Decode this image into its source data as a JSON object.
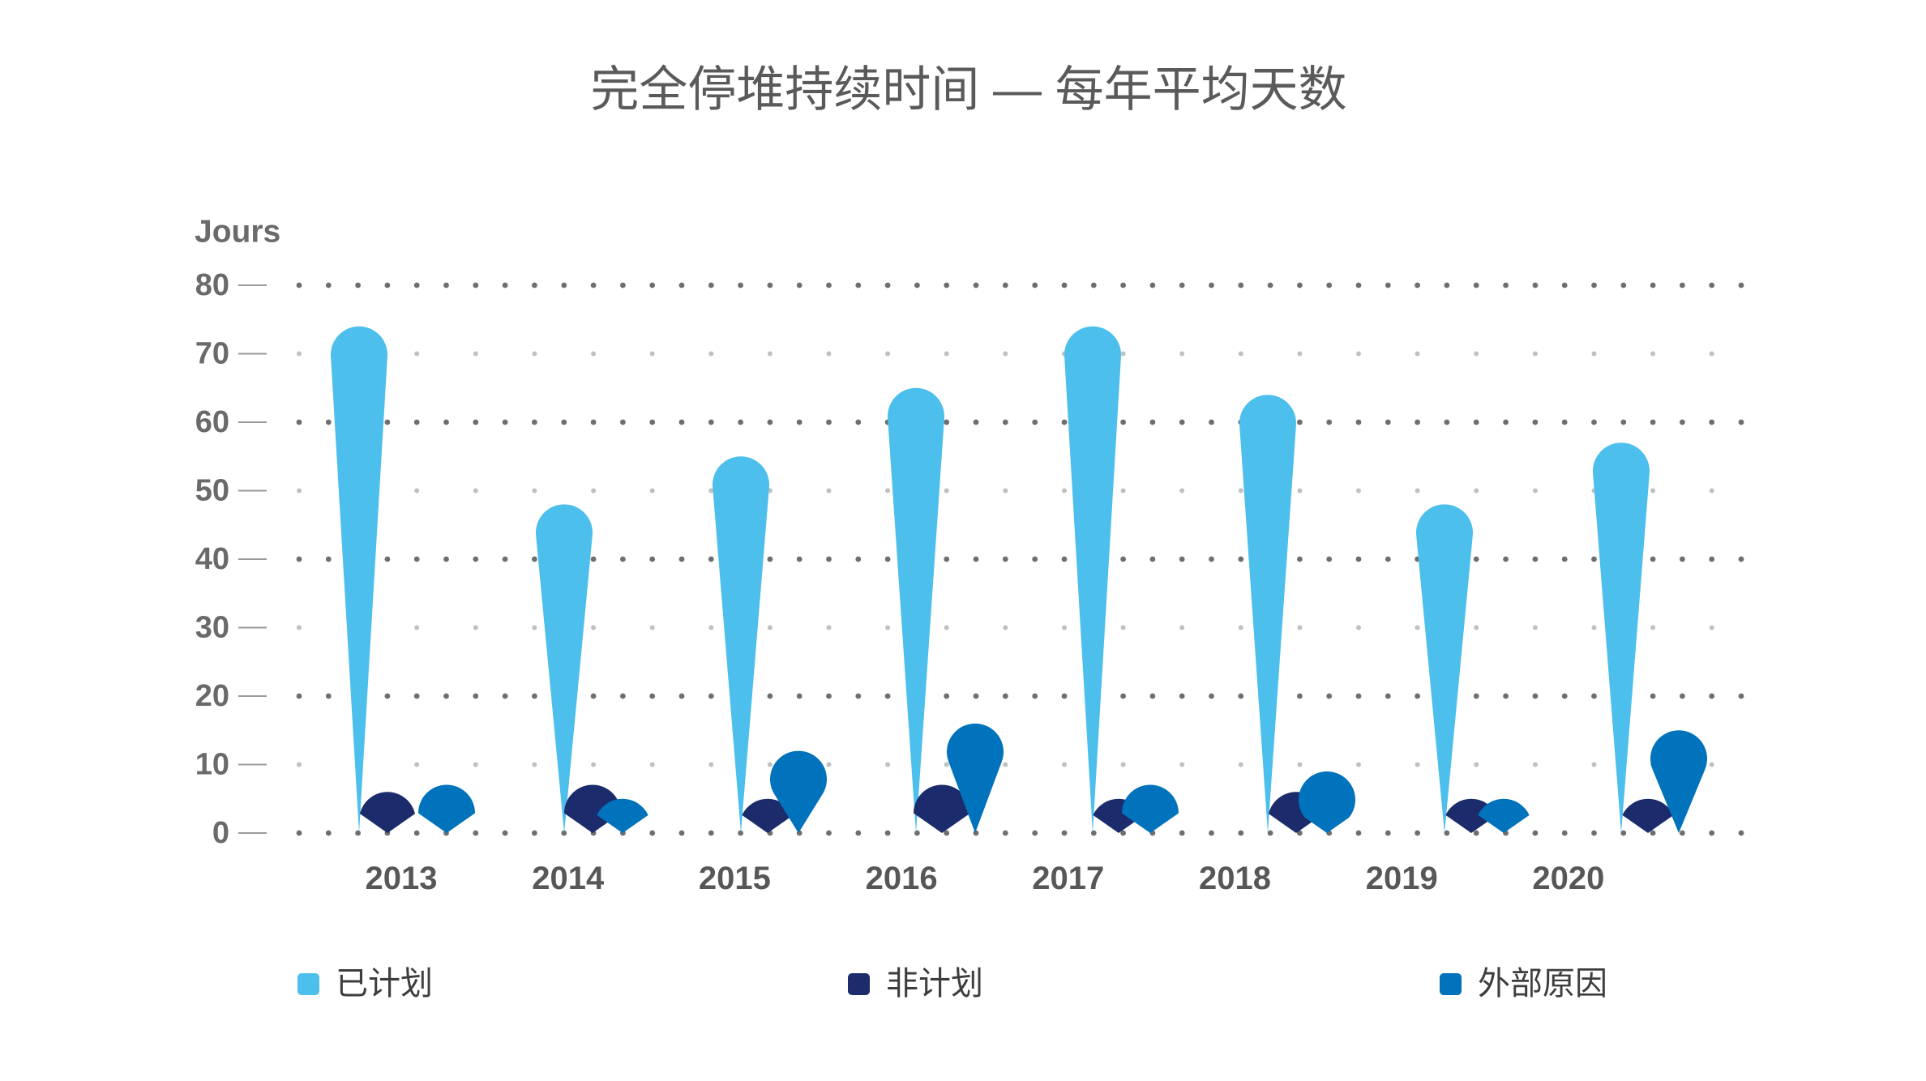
{
  "chart_data": {
    "type": "bar",
    "title": "完全停堆持续时间 — 每年平均天数",
    "xlabel": "",
    "ylabel": "Jours",
    "ylim": [
      0,
      80
    ],
    "yticks": [
      0,
      10,
      20,
      30,
      40,
      50,
      60,
      70,
      80
    ],
    "grid": true,
    "legend_position": "bottom",
    "categories": [
      "2013",
      "2014",
      "2015",
      "2016",
      "2017",
      "2018",
      "2019",
      "2020"
    ],
    "series": [
      {
        "name": "已计划",
        "color": "#4dbfec",
        "values": [
          74,
          48,
          55,
          65,
          74,
          64,
          48,
          57
        ]
      },
      {
        "name": "非计划",
        "color": "#1c2b6b",
        "values": [
          6,
          7,
          5,
          7,
          5,
          6,
          5,
          5
        ]
      },
      {
        "name": "外部原因",
        "color": "#0073bc",
        "values": [
          7,
          5,
          12,
          16,
          7,
          9,
          5,
          15
        ]
      }
    ]
  }
}
